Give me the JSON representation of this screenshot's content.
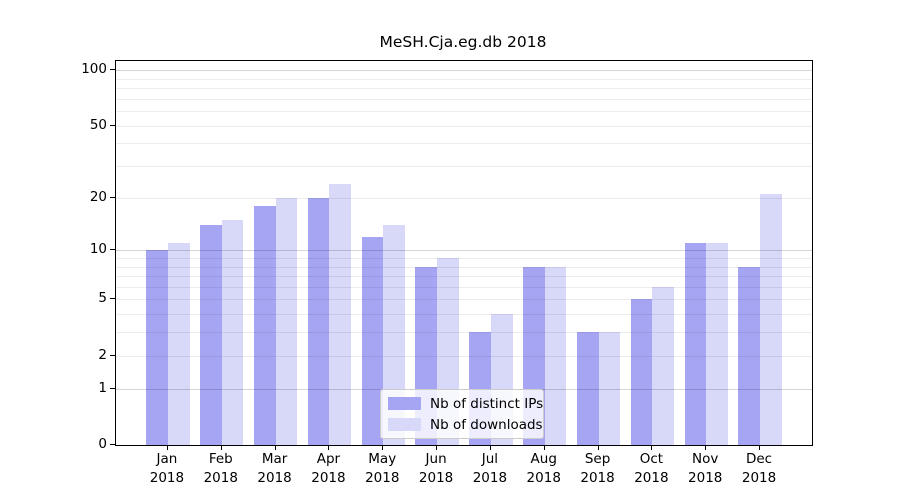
{
  "chart_data": {
    "type": "bar",
    "title": "MeSH.Cja.eg.db 2018",
    "x_year": "2018",
    "categories": [
      "Jan",
      "Feb",
      "Mar",
      "Apr",
      "May",
      "Jun",
      "Jul",
      "Aug",
      "Sep",
      "Oct",
      "Nov",
      "Dec"
    ],
    "series": [
      {
        "name": "Nb of distinct IPs",
        "color": "#a5a5f3",
        "values": [
          10,
          14,
          18,
          20,
          12,
          8,
          3,
          8,
          3,
          5,
          11,
          8
        ]
      },
      {
        "name": "Nb of downloads",
        "color": "#d8d8f8",
        "values": [
          11,
          15,
          20,
          24,
          14,
          9,
          4,
          8,
          3,
          6,
          11,
          21
        ]
      }
    ],
    "y_axis": {
      "scale": "log1p",
      "top_value": 112,
      "tick_labels": [
        100,
        50,
        20,
        10,
        5,
        2,
        1,
        0
      ],
      "major_gridlines": [
        1,
        10,
        100
      ],
      "minor_gridlines": [
        2,
        3,
        4,
        5,
        6,
        7,
        8,
        9,
        20,
        30,
        40,
        50,
        60,
        70,
        80,
        90
      ]
    },
    "ylim": [
      0,
      112
    ],
    "grid": true,
    "legend_position": "bottom-center"
  }
}
